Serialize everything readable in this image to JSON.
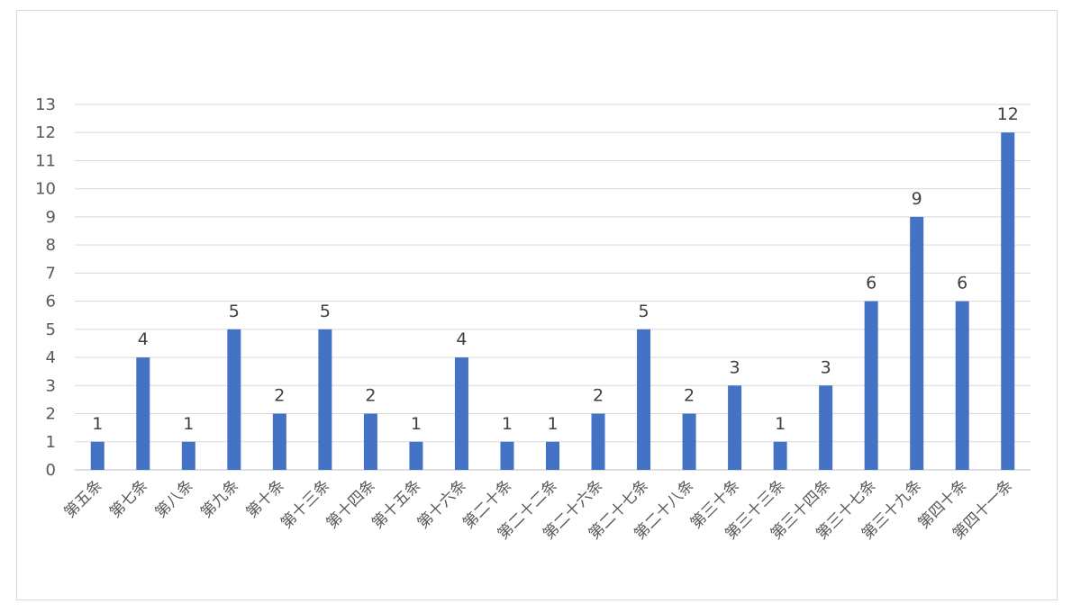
{
  "chart_data": {
    "type": "bar",
    "title": "",
    "xlabel": "",
    "ylabel": "",
    "ylim": [
      0,
      13
    ],
    "yticks": [
      0,
      1,
      2,
      3,
      4,
      5,
      6,
      7,
      8,
      9,
      10,
      11,
      12,
      13
    ],
    "grid": true,
    "legend": "none",
    "bar_color": "#4472C4",
    "categories": [
      "第五条",
      "第七条",
      "第八条",
      "第九条",
      "第十条",
      "第十三条",
      "第十四条",
      "第十五条",
      "第十六条",
      "第二十条",
      "第二十二条",
      "第二十六条",
      "第二十七条",
      "第二十八条",
      "第三十条",
      "第三十三条",
      "第三十四条",
      "第三十七条",
      "第三十九条",
      "第四十条",
      "第四十一条"
    ],
    "values": [
      1,
      4,
      1,
      5,
      2,
      5,
      2,
      1,
      4,
      1,
      1,
      2,
      5,
      2,
      3,
      1,
      3,
      6,
      9,
      6,
      12
    ]
  }
}
